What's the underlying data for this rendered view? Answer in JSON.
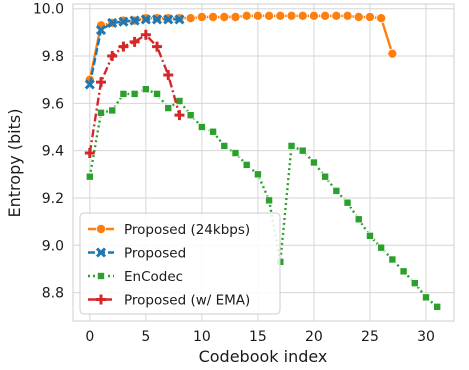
{
  "chart_data": {
    "type": "line",
    "title": "",
    "xlabel": "Codebook index",
    "ylabel": "Entropy (bits)",
    "xlim": [
      -1.5,
      32.5
    ],
    "ylim": [
      8.68,
      10.02
    ],
    "xticks": [
      0,
      5,
      10,
      15,
      20,
      25,
      30
    ],
    "yticks": [
      8.8,
      9.0,
      9.2,
      9.4,
      9.6,
      9.8,
      10.0
    ],
    "ytick_labels": [
      "8.8",
      "9.0",
      "9.2",
      "9.4",
      "9.6",
      "9.8",
      "10.0"
    ],
    "grid": true,
    "legend_position": "lower-left",
    "series": [
      {
        "name": "Proposed (24kbps)",
        "color": "#ff7f0e",
        "marker": "circle",
        "linestyle": "solid",
        "x": [
          0,
          1,
          2,
          3,
          4,
          5,
          6,
          7,
          8,
          9,
          10,
          11,
          12,
          13,
          14,
          15,
          16,
          17,
          18,
          19,
          20,
          21,
          22,
          23,
          24,
          25,
          26,
          27
        ],
        "y": [
          9.7,
          9.93,
          9.94,
          9.95,
          9.95,
          9.96,
          9.96,
          9.96,
          9.96,
          9.96,
          9.965,
          9.965,
          9.965,
          9.965,
          9.97,
          9.97,
          9.97,
          9.97,
          9.97,
          9.97,
          9.97,
          9.97,
          9.97,
          9.97,
          9.965,
          9.965,
          9.96,
          9.81
        ]
      },
      {
        "name": "Proposed",
        "color": "#1f77b4",
        "marker": "x",
        "linestyle": "dashed",
        "x": [
          0,
          1,
          2,
          3,
          4,
          5,
          6,
          7,
          8
        ],
        "y": [
          9.68,
          9.91,
          9.94,
          9.945,
          9.95,
          9.955,
          9.955,
          9.955,
          9.955
        ]
      },
      {
        "name": "EnCodec",
        "color": "#2ca02c",
        "marker": "square",
        "linestyle": "dotted",
        "x": [
          0,
          1,
          2,
          3,
          4,
          5,
          6,
          7,
          8,
          9,
          10,
          11,
          12,
          13,
          14,
          15,
          16,
          17,
          18,
          19,
          20,
          21,
          22,
          23,
          24,
          25,
          26,
          27,
          28,
          29,
          30,
          31
        ],
        "y": [
          9.29,
          9.56,
          9.57,
          9.64,
          9.64,
          9.66,
          9.64,
          9.58,
          9.61,
          9.55,
          9.5,
          9.48,
          9.42,
          9.39,
          9.34,
          9.3,
          9.19,
          8.93,
          9.42,
          9.4,
          9.35,
          9.29,
          9.23,
          9.18,
          9.11,
          9.04,
          8.99,
          8.94,
          8.89,
          8.84,
          8.78,
          8.74
        ]
      },
      {
        "name": "Proposed (w/ EMA)",
        "color": "#d62728",
        "marker": "plus",
        "linestyle": "dashdot",
        "x": [
          0,
          1,
          2,
          3,
          4,
          5,
          6,
          7,
          8
        ],
        "y": [
          9.39,
          9.69,
          9.8,
          9.84,
          9.86,
          9.89,
          9.84,
          9.72,
          9.55
        ]
      }
    ]
  }
}
